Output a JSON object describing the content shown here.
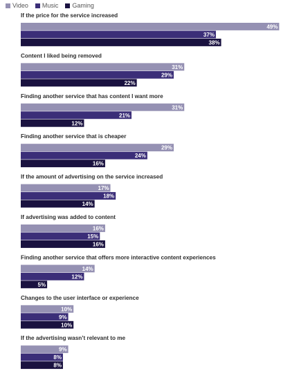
{
  "chart_data": {
    "type": "bar",
    "orientation": "horizontal",
    "legend_position": "top-left",
    "grid": false,
    "xlim": [
      0,
      50
    ],
    "value_suffix": "%",
    "series": [
      {
        "name": "Video",
        "color": "#9591b3",
        "values": [
          49,
          31,
          31,
          29,
          17,
          16,
          14,
          10,
          9
        ]
      },
      {
        "name": "Music",
        "color": "#3b2e78",
        "values": [
          37,
          29,
          21,
          24,
          18,
          15,
          12,
          9,
          8
        ]
      },
      {
        "name": "Gaming",
        "color": "#1a1240",
        "values": [
          38,
          22,
          12,
          16,
          14,
          16,
          5,
          10,
          8
        ]
      }
    ],
    "categories": [
      "If the price for the service increased",
      "Content I liked being removed",
      "Finding another service that has content I want more",
      "Finding another service that is cheaper",
      "If the amount of advertising on the service increased",
      "If advertising was added to content",
      "Finding another service that offers more interactive content experiences",
      "Changes to the user interface or experience",
      "If the advertising wasn’t relevant to me"
    ]
  }
}
